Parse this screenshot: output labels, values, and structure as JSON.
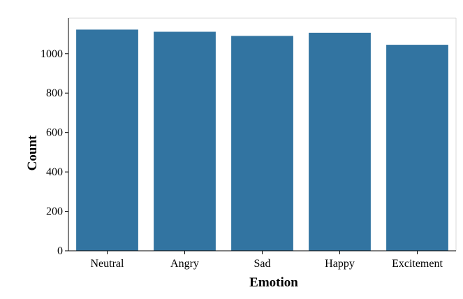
{
  "chart_data": {
    "type": "bar",
    "categories": [
      "Neutral",
      "Angry",
      "Sad",
      "Happy",
      "Excitement"
    ],
    "values": [
      1122,
      1111,
      1090,
      1106,
      1045
    ],
    "xlabel": "Emotion",
    "ylabel": "Count",
    "ylim": [
      0,
      1180
    ],
    "yticks": [
      0,
      200,
      400,
      600,
      800,
      1000
    ],
    "grid": false,
    "legend": "none",
    "bar_color": "#3274a1"
  }
}
